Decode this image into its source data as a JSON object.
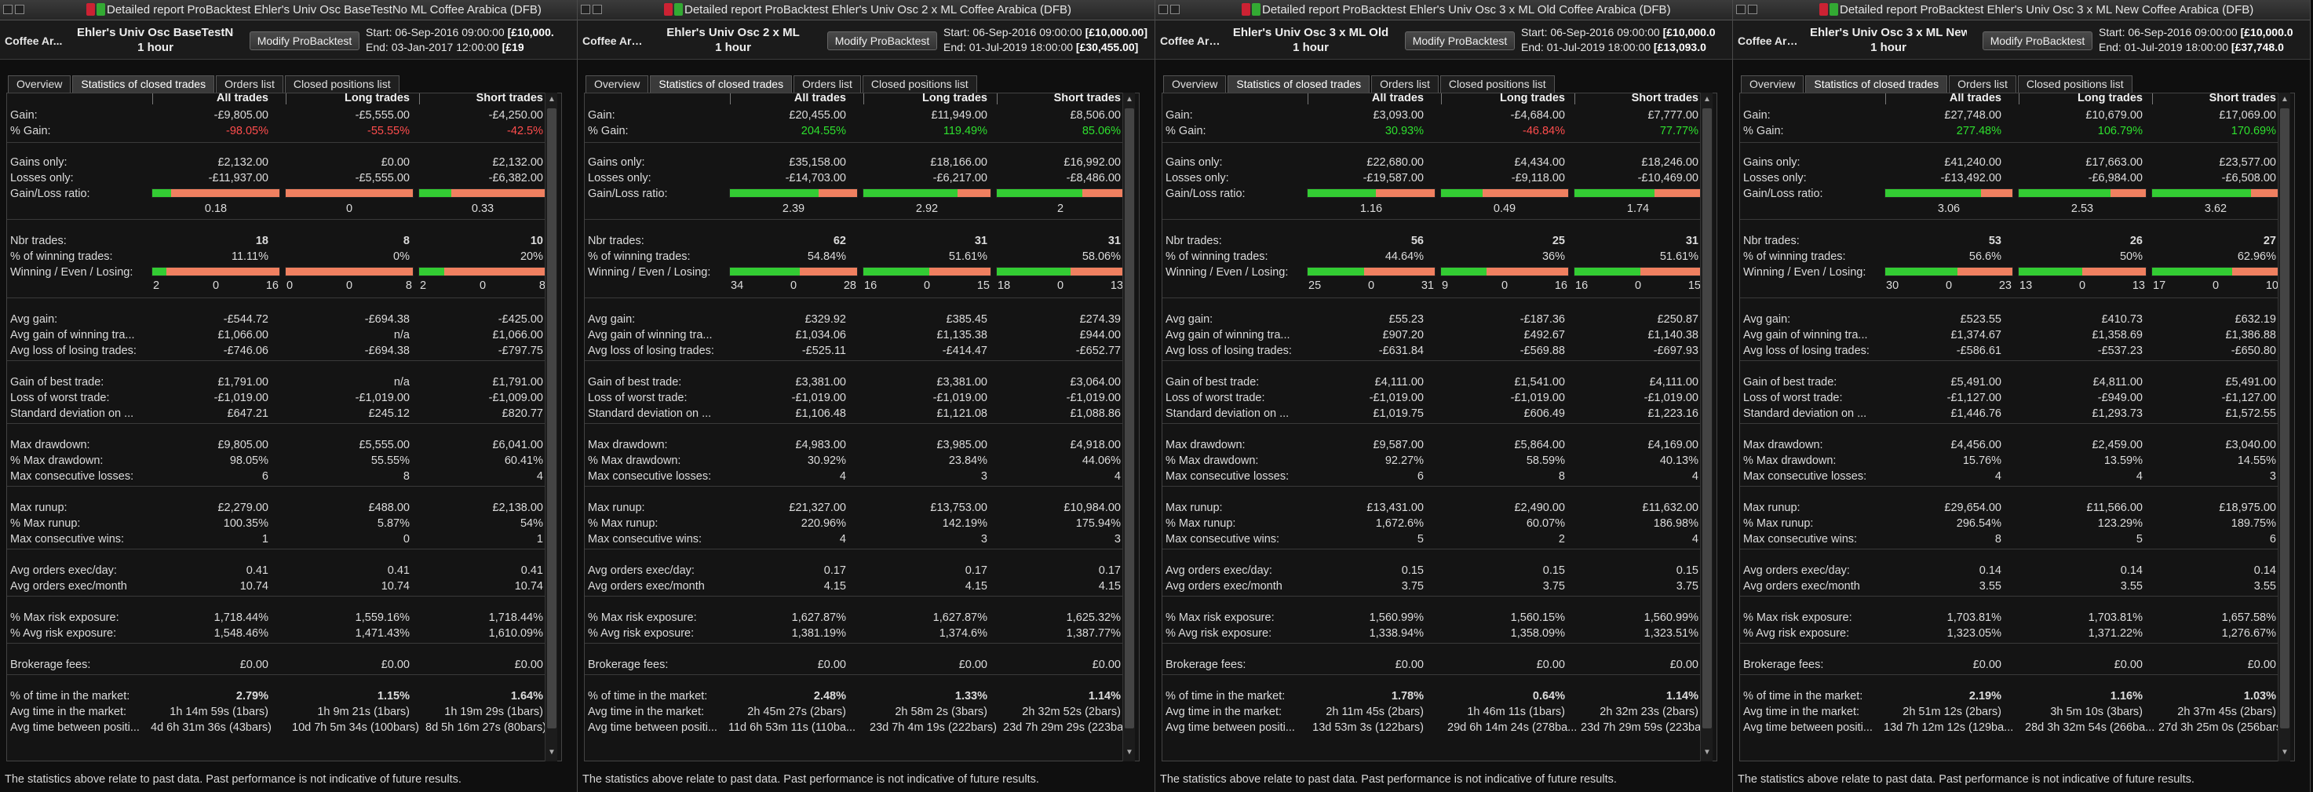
{
  "colors": {
    "gain_green": "#33cc33",
    "loss_red": "#f08060",
    "negative_text": "#ff4d4d",
    "positive_text": "#2ee02e"
  },
  "tabs": [
    "Overview",
    "Statistics of closed trades",
    "Orders list",
    "Closed positions list"
  ],
  "active_tab": 1,
  "col_headers": [
    "All trades",
    "Long trades",
    "Short trades"
  ],
  "footer": "The statistics above relate to past data. Past performance is not indicative of future results.",
  "panels": [
    {
      "title_bar": "Detailed report  ProBacktest  Ehler's Univ Osc BaseTestNo ML  Coffee Arabica (DFB)",
      "instrument": "Coffee Ar...",
      "system_name": "Ehler's Univ Osc BaseTestNo ML",
      "timeframe": "1 hour",
      "modify_label": "Modify ProBacktest",
      "start_label": "Start:",
      "start": "06-Sep-2016 09:00:00",
      "start_capital": "[£10,000.",
      "end_label": "End:",
      "end": "03-Jan-2017 12:00:00",
      "end_capital": "[£19",
      "stats": {
        "gain": [
          "-£9,805.00",
          "-£5,555.00",
          "-£4,250.00"
        ],
        "pct_gain": [
          "-98.05%",
          "-55.55%",
          "-42.5%"
        ],
        "gains_only": [
          "£2,132.00",
          "£0.00",
          "£2,132.00"
        ],
        "losses_only": [
          "-£11,937.00",
          "-£5,555.00",
          "-£6,382.00"
        ],
        "gl_ratio": [
          "0.18",
          "0",
          "0.33"
        ],
        "gl_fraction": [
          0.15,
          0.0,
          0.25
        ],
        "nbr_trades": [
          "18",
          "8",
          "10"
        ],
        "pct_winning": [
          "11.11%",
          "0%",
          "20%"
        ],
        "wel": [
          [
            "2",
            "0",
            "16"
          ],
          [
            "0",
            "0",
            "8"
          ],
          [
            "2",
            "0",
            "8"
          ]
        ],
        "avg_gain": [
          "-£544.72",
          "-£694.38",
          "-£425.00"
        ],
        "avg_win": [
          "£1,066.00",
          "n/a",
          "£1,066.00"
        ],
        "avg_loss": [
          "-£746.06",
          "-£694.38",
          "-£797.75"
        ],
        "best": [
          "£1,791.00",
          "n/a",
          "£1,791.00"
        ],
        "worst": [
          "-£1,019.00",
          "-£1,019.00",
          "-£1,009.00"
        ],
        "std": [
          "£647.21",
          "£245.12",
          "£820.77"
        ],
        "max_dd": [
          "£9,805.00",
          "£5,555.00",
          "£6,041.00"
        ],
        "pct_max_dd": [
          "98.05%",
          "55.55%",
          "60.41%"
        ],
        "max_cons_losses": [
          "6",
          "8",
          "4"
        ],
        "max_runup": [
          "£2,279.00",
          "£488.00",
          "£2,138.00"
        ],
        "pct_max_runup": [
          "100.35%",
          "5.87%",
          "54%"
        ],
        "max_cons_wins": [
          "1",
          "0",
          "1"
        ],
        "orders_day": [
          "0.41",
          "0.41",
          "0.41"
        ],
        "orders_month": [
          "10.74",
          "10.74",
          "10.74"
        ],
        "max_risk": [
          "1,718.44%",
          "1,559.16%",
          "1,718.44%"
        ],
        "avg_risk": [
          "1,548.46%",
          "1,471.43%",
          "1,610.09%"
        ],
        "brokerage": [
          "£0.00",
          "£0.00",
          "£0.00"
        ],
        "pct_time": [
          "2.79%",
          "1.15%",
          "1.64%"
        ],
        "avg_time": [
          "1h 14m 59s (1bars)",
          "1h 9m 21s (1bars)",
          "1h 19m 29s (1bars)"
        ],
        "avg_between": [
          "4d 6h 31m 36s (43bars)",
          "10d 7h 5m 34s (100bars)",
          "8d 5h 16m 27s (80bars)"
        ]
      }
    },
    {
      "title_bar": "Detailed report  ProBacktest  Ehler's Univ Osc 2 x ML  Coffee Arabica (DFB)",
      "instrument": "Coffee Arabic...",
      "system_name": "Ehler's Univ Osc 2 x ML",
      "timeframe": "1 hour",
      "modify_label": "Modify ProBacktest",
      "start_label": "Start:",
      "start": "06-Sep-2016 09:00:00",
      "start_capital": "[£10,000.00]",
      "end_label": "End:",
      "end": "01-Jul-2019 18:00:00",
      "end_capital": "[£30,455.00]",
      "stats": {
        "gain": [
          "£20,455.00",
          "£11,949.00",
          "£8,506.00"
        ],
        "pct_gain": [
          "204.55%",
          "119.49%",
          "85.06%"
        ],
        "gains_only": [
          "£35,158.00",
          "£18,166.00",
          "£16,992.00"
        ],
        "losses_only": [
          "-£14,703.00",
          "-£6,217.00",
          "-£8,486.00"
        ],
        "gl_ratio": [
          "2.39",
          "2.92",
          "2"
        ],
        "gl_fraction": [
          0.7,
          0.74,
          0.67
        ],
        "nbr_trades": [
          "62",
          "31",
          "31"
        ],
        "pct_winning": [
          "54.84%",
          "51.61%",
          "58.06%"
        ],
        "wel": [
          [
            "34",
            "0",
            "28"
          ],
          [
            "16",
            "0",
            "15"
          ],
          [
            "18",
            "0",
            "13"
          ]
        ],
        "avg_gain": [
          "£329.92",
          "£385.45",
          "£274.39"
        ],
        "avg_win": [
          "£1,034.06",
          "£1,135.38",
          "£944.00"
        ],
        "avg_loss": [
          "-£525.11",
          "-£414.47",
          "-£652.77"
        ],
        "best": [
          "£3,381.00",
          "£3,381.00",
          "£3,064.00"
        ],
        "worst": [
          "-£1,019.00",
          "-£1,019.00",
          "-£1,019.00"
        ],
        "std": [
          "£1,106.48",
          "£1,121.08",
          "£1,088.86"
        ],
        "max_dd": [
          "£4,983.00",
          "£3,985.00",
          "£4,918.00"
        ],
        "pct_max_dd": [
          "30.92%",
          "23.84%",
          "44.06%"
        ],
        "max_cons_losses": [
          "4",
          "3",
          "4"
        ],
        "max_runup": [
          "£21,327.00",
          "£13,753.00",
          "£10,984.00"
        ],
        "pct_max_runup": [
          "220.96%",
          "142.19%",
          "175.94%"
        ],
        "max_cons_wins": [
          "4",
          "3",
          "3"
        ],
        "orders_day": [
          "0.17",
          "0.17",
          "0.17"
        ],
        "orders_month": [
          "4.15",
          "4.15",
          "4.15"
        ],
        "max_risk": [
          "1,627.87%",
          "1,627.87%",
          "1,625.32%"
        ],
        "avg_risk": [
          "1,381.19%",
          "1,374.6%",
          "1,387.77%"
        ],
        "brokerage": [
          "£0.00",
          "£0.00",
          "£0.00"
        ],
        "pct_time": [
          "2.48%",
          "1.33%",
          "1.14%"
        ],
        "avg_time": [
          "2h 45m 27s (2bars)",
          "2h 58m 2s (3bars)",
          "2h 32m 52s (2bars)"
        ],
        "avg_between": [
          "11d 6h 53m 11s (110ba...",
          "23d 7h 4m 19s (222bars)",
          "23d 7h 29m 29s (223ba..."
        ]
      }
    },
    {
      "title_bar": "Detailed report  ProBacktest  Ehler's Univ Osc 3 x ML Old  Coffee Arabica (DFB)",
      "instrument": "Coffee Arabi...",
      "system_name": "Ehler's Univ Osc 3 x ML Old",
      "timeframe": "1 hour",
      "modify_label": "Modify ProBacktest",
      "start_label": "Start:",
      "start": "06-Sep-2016 09:00:00",
      "start_capital": "[£10,000.0",
      "end_label": "End:",
      "end": "01-Jul-2019 18:00:00",
      "end_capital": "[£13,093.0",
      "stats": {
        "gain": [
          "£3,093.00",
          "-£4,684.00",
          "£7,777.00"
        ],
        "pct_gain": [
          "30.93%",
          "-46.84%",
          "77.77%"
        ],
        "gains_only": [
          "£22,680.00",
          "£4,434.00",
          "£18,246.00"
        ],
        "losses_only": [
          "-£19,587.00",
          "-£9,118.00",
          "-£10,469.00"
        ],
        "gl_ratio": [
          "1.16",
          "0.49",
          "1.74"
        ],
        "gl_fraction": [
          0.54,
          0.33,
          0.63
        ],
        "nbr_trades": [
          "56",
          "25",
          "31"
        ],
        "pct_winning": [
          "44.64%",
          "36%",
          "51.61%"
        ],
        "wel": [
          [
            "25",
            "0",
            "31"
          ],
          [
            "9",
            "0",
            "16"
          ],
          [
            "16",
            "0",
            "15"
          ]
        ],
        "avg_gain": [
          "£55.23",
          "-£187.36",
          "£250.87"
        ],
        "avg_win": [
          "£907.20",
          "£492.67",
          "£1,140.38"
        ],
        "avg_loss": [
          "-£631.84",
          "-£569.88",
          "-£697.93"
        ],
        "best": [
          "£4,111.00",
          "£1,541.00",
          "£4,111.00"
        ],
        "worst": [
          "-£1,019.00",
          "-£1,019.00",
          "-£1,019.00"
        ],
        "std": [
          "£1,019.75",
          "£606.49",
          "£1,223.16"
        ],
        "max_dd": [
          "£9,587.00",
          "£5,864.00",
          "£4,169.00"
        ],
        "pct_max_dd": [
          "92.27%",
          "58.59%",
          "40.13%"
        ],
        "max_cons_losses": [
          "6",
          "8",
          "4"
        ],
        "max_runup": [
          "£13,431.00",
          "£2,490.00",
          "£11,632.00"
        ],
        "pct_max_runup": [
          "1,672.6%",
          "60.07%",
          "186.98%"
        ],
        "max_cons_wins": [
          "5",
          "2",
          "4"
        ],
        "orders_day": [
          "0.15",
          "0.15",
          "0.15"
        ],
        "orders_month": [
          "3.75",
          "3.75",
          "3.75"
        ],
        "max_risk": [
          "1,560.99%",
          "1,560.15%",
          "1,560.99%"
        ],
        "avg_risk": [
          "1,338.94%",
          "1,358.09%",
          "1,323.51%"
        ],
        "brokerage": [
          "£0.00",
          "£0.00",
          "£0.00"
        ],
        "pct_time": [
          "1.78%",
          "0.64%",
          "1.14%"
        ],
        "avg_time": [
          "2h 11m 45s (2bars)",
          "1h 46m 11s (1bars)",
          "2h 32m 23s (2bars)"
        ],
        "avg_between": [
          "13d 53m 3s (122bars)",
          "29d 6h 14m 24s (278ba...",
          "23d 7h 29m 59s (223ba..."
        ]
      }
    },
    {
      "title_bar": "Detailed report  ProBacktest  Ehler's Univ Osc 3 x ML New  Coffee Arabica (DFB)",
      "instrument": "Coffee Arabi...",
      "system_name": "Ehler's Univ Osc 3 x ML New",
      "timeframe": "1 hour",
      "modify_label": "Modify ProBacktest",
      "start_label": "Start:",
      "start": "06-Sep-2016 09:00:00",
      "start_capital": "[£10,000.0",
      "end_label": "End:",
      "end": "01-Jul-2019 18:00:00",
      "end_capital": "[£37,748.0",
      "stats": {
        "gain": [
          "£27,748.00",
          "£10,679.00",
          "£17,069.00"
        ],
        "pct_gain": [
          "277.48%",
          "106.79%",
          "170.69%"
        ],
        "gains_only": [
          "£41,240.00",
          "£17,663.00",
          "£23,577.00"
        ],
        "losses_only": [
          "-£13,492.00",
          "-£6,984.00",
          "-£6,508.00"
        ],
        "gl_ratio": [
          "3.06",
          "2.53",
          "3.62"
        ],
        "gl_fraction": [
          0.75,
          0.72,
          0.78
        ],
        "nbr_trades": [
          "53",
          "26",
          "27"
        ],
        "pct_winning": [
          "56.6%",
          "50%",
          "62.96%"
        ],
        "wel": [
          [
            "30",
            "0",
            "23"
          ],
          [
            "13",
            "0",
            "13"
          ],
          [
            "17",
            "0",
            "10"
          ]
        ],
        "avg_gain": [
          "£523.55",
          "£410.73",
          "£632.19"
        ],
        "avg_win": [
          "£1,374.67",
          "£1,358.69",
          "£1,386.88"
        ],
        "avg_loss": [
          "-£586.61",
          "-£537.23",
          "-£650.80"
        ],
        "best": [
          "£5,491.00",
          "£4,811.00",
          "£5,491.00"
        ],
        "worst": [
          "-£1,127.00",
          "-£949.00",
          "-£1,127.00"
        ],
        "std": [
          "£1,446.76",
          "£1,293.73",
          "£1,572.55"
        ],
        "max_dd": [
          "£4,456.00",
          "£2,459.00",
          "£3,040.00"
        ],
        "pct_max_dd": [
          "15.76%",
          "13.59%",
          "14.55%"
        ],
        "max_cons_losses": [
          "4",
          "4",
          "3"
        ],
        "max_runup": [
          "£29,654.00",
          "£11,566.00",
          "£18,975.00"
        ],
        "pct_max_runup": [
          "296.54%",
          "123.29%",
          "189.75%"
        ],
        "max_cons_wins": [
          "8",
          "5",
          "6"
        ],
        "orders_day": [
          "0.14",
          "0.14",
          "0.14"
        ],
        "orders_month": [
          "3.55",
          "3.55",
          "3.55"
        ],
        "max_risk": [
          "1,703.81%",
          "1,703.81%",
          "1,657.58%"
        ],
        "avg_risk": [
          "1,323.05%",
          "1,371.22%",
          "1,276.67%"
        ],
        "brokerage": [
          "£0.00",
          "£0.00",
          "£0.00"
        ],
        "pct_time": [
          "2.19%",
          "1.16%",
          "1.03%"
        ],
        "avg_time": [
          "2h 51m 12s (2bars)",
          "3h 5m 10s (3bars)",
          "2h 37m 45s (2bars)"
        ],
        "avg_between": [
          "13d 7h 12m 12s (129ba...",
          "28d 3h 32m 54s (266ba...",
          "27d 3h 25m 0s (256bars)"
        ]
      }
    }
  ],
  "labels": {
    "gain": "Gain:",
    "pct_gain": "% Gain:",
    "gains_only": "Gains only:",
    "losses_only": "Losses only:",
    "gl_ratio": "Gain/Loss ratio:",
    "nbr_trades": "Nbr trades:",
    "pct_winning": "% of winning trades:",
    "wel": "Winning / Even / Losing:",
    "avg_gain": "Avg gain:",
    "avg_win": "Avg gain of winning tra...",
    "avg_loss": "Avg loss of losing trades:",
    "best": "Gain of best trade:",
    "worst": "Loss of worst trade:",
    "std": "Standard deviation on ...",
    "max_dd": "Max drawdown:",
    "pct_max_dd": "% Max drawdown:",
    "max_cons_losses": "Max consecutive losses:",
    "max_runup": "Max runup:",
    "pct_max_runup": "% Max runup:",
    "max_cons_wins": "Max consecutive wins:",
    "orders_day": "Avg orders exec/day:",
    "orders_month": "Avg orders exec/month",
    "max_risk": "% Max risk exposure:",
    "avg_risk": "% Avg risk exposure:",
    "brokerage": "Brokerage fees:",
    "pct_time": "% of time in the market:",
    "avg_time": "Avg time in the market:",
    "avg_between": "Avg time between positi..."
  }
}
